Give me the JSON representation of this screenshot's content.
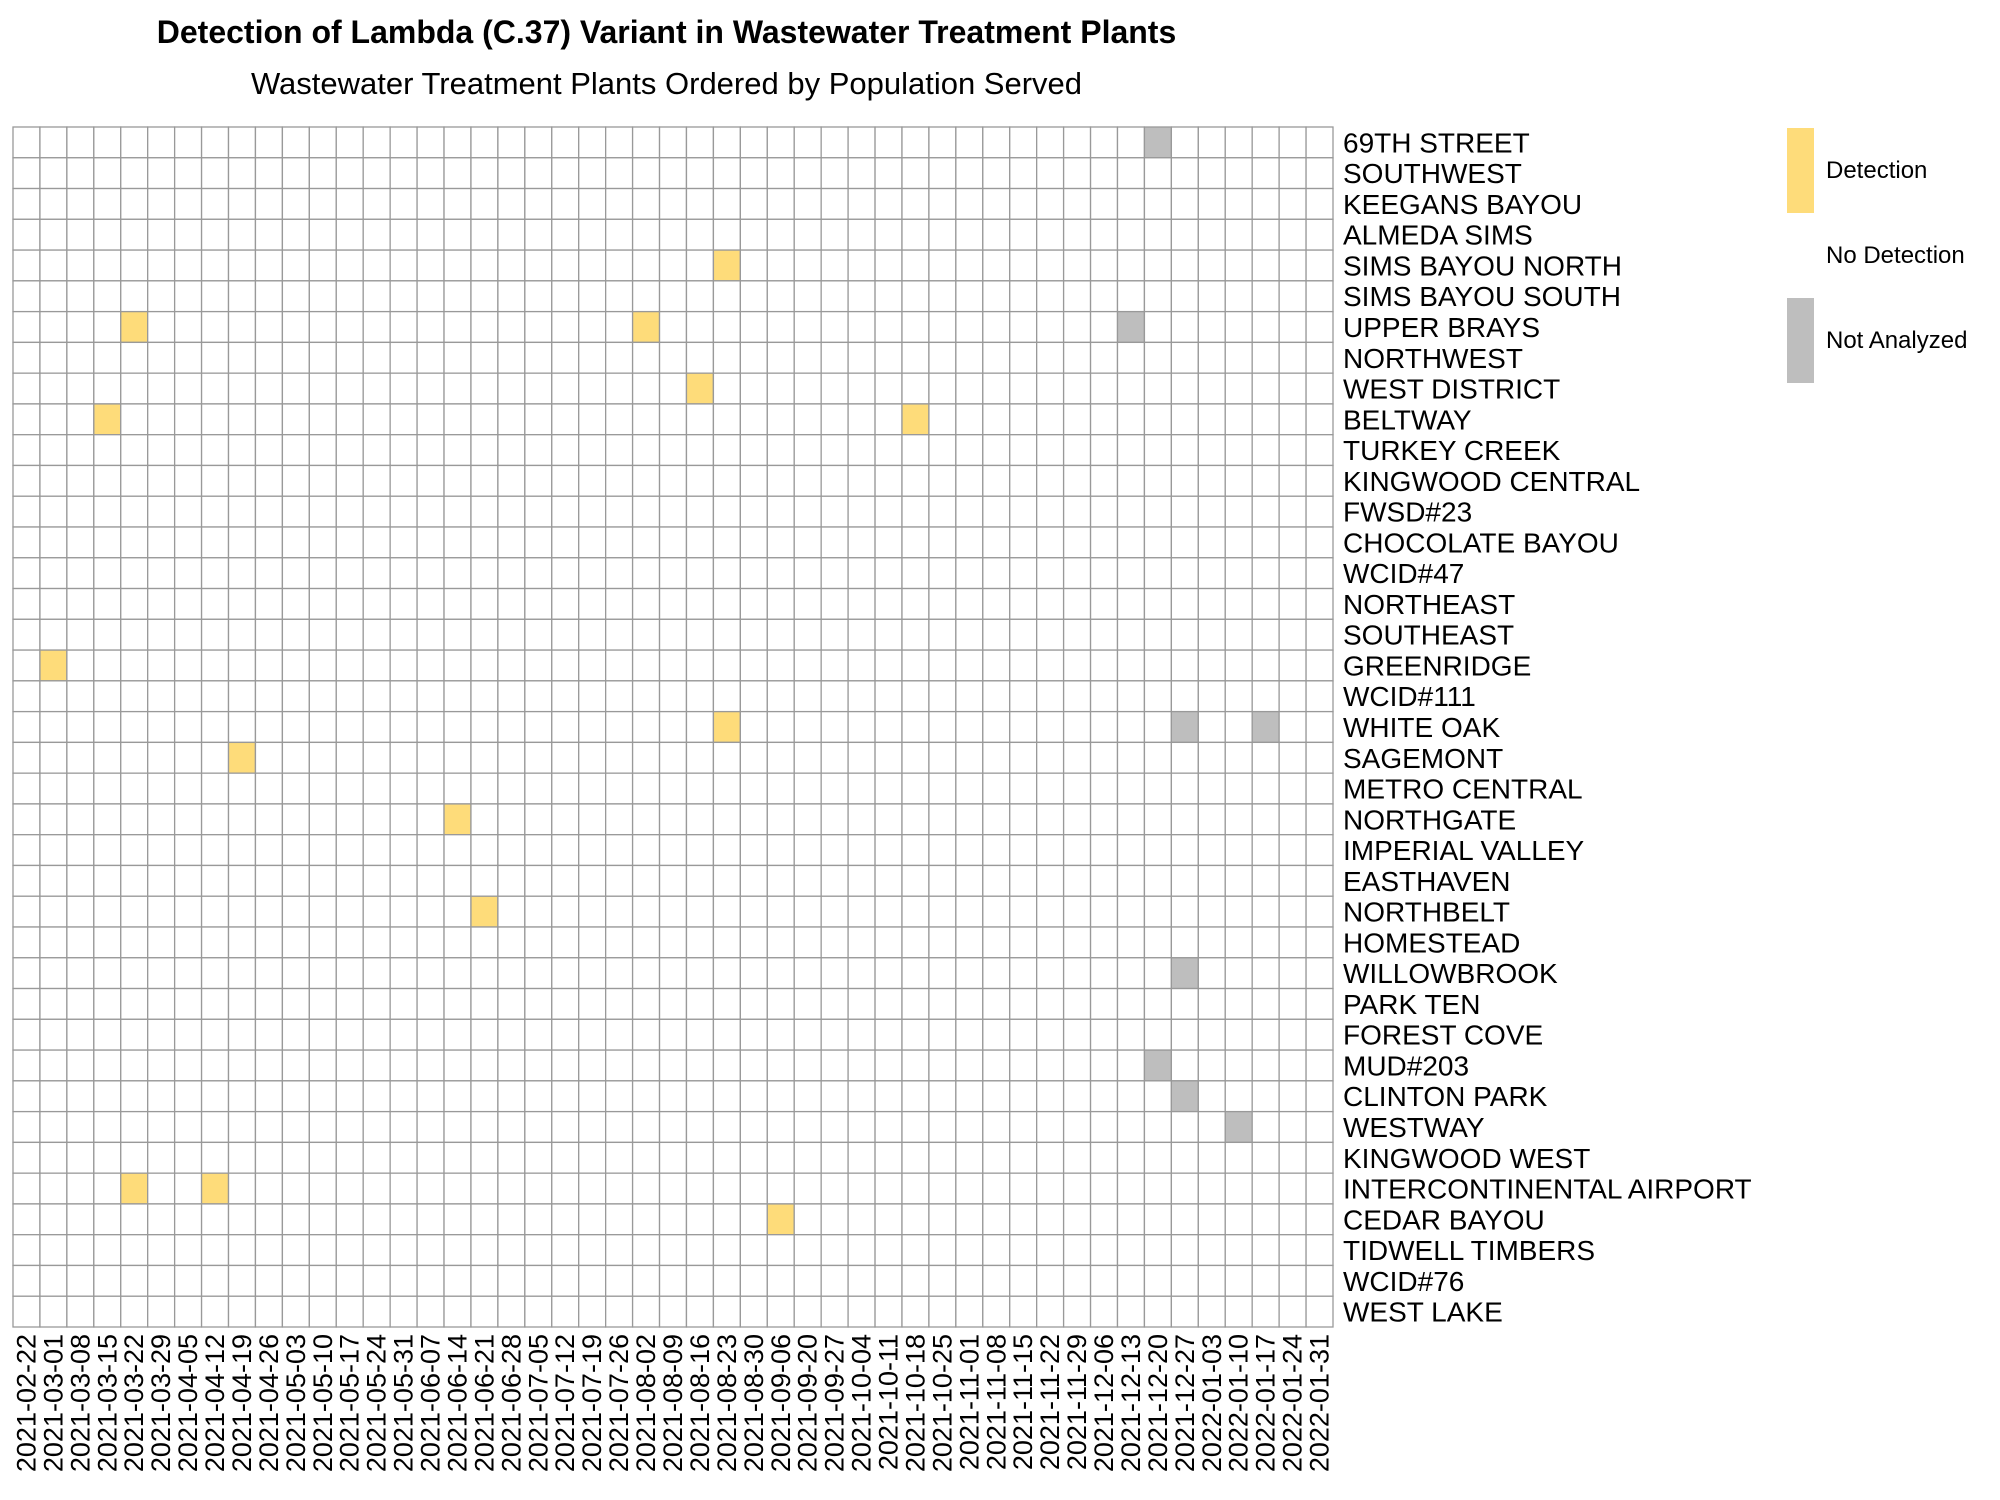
{
  "chart_data": {
    "type": "heatmap",
    "title": "Detection of Lambda (C.37) Variant in Wastewater Treatment Plants",
    "subtitle": "Wastewater Treatment Plants Ordered by Population Served",
    "x_labels": [
      "2021-02-22",
      "2021-03-01",
      "2021-03-08",
      "2021-03-15",
      "2021-03-22",
      "2021-03-29",
      "2021-04-05",
      "2021-04-12",
      "2021-04-19",
      "2021-04-26",
      "2021-05-03",
      "2021-05-10",
      "2021-05-17",
      "2021-05-24",
      "2021-05-31",
      "2021-06-07",
      "2021-06-14",
      "2021-06-21",
      "2021-06-28",
      "2021-07-05",
      "2021-07-12",
      "2021-07-19",
      "2021-07-26",
      "2021-08-02",
      "2021-08-09",
      "2021-08-16",
      "2021-08-23",
      "2021-08-30",
      "2021-09-06",
      "2021-09-20",
      "2021-09-27",
      "2021-10-04",
      "2021-10-11",
      "2021-10-18",
      "2021-10-25",
      "2021-11-01",
      "2021-11-08",
      "2021-11-15",
      "2021-11-22",
      "2021-11-29",
      "2021-12-06",
      "2021-12-13",
      "2021-12-20",
      "2021-12-27",
      "2022-01-03",
      "2022-01-10",
      "2022-01-17",
      "2022-01-24",
      "2022-01-31"
    ],
    "y_labels": [
      "69TH STREET",
      "SOUTHWEST",
      "KEEGANS BAYOU",
      "ALMEDA SIMS",
      "SIMS BAYOU NORTH",
      "SIMS BAYOU SOUTH",
      "UPPER BRAYS",
      "NORTHWEST",
      "WEST DISTRICT",
      "BELTWAY",
      "TURKEY CREEK",
      "KINGWOOD CENTRAL",
      "FWSD#23",
      "CHOCOLATE BAYOU",
      "WCID#47",
      "NORTHEAST",
      "SOUTHEAST",
      "GREENRIDGE",
      "WCID#111",
      "WHITE OAK",
      "SAGEMONT",
      "METRO CENTRAL",
      "NORTHGATE",
      "IMPERIAL VALLEY",
      "EASTHAVEN",
      "NORTHBELT",
      "HOMESTEAD",
      "WILLOWBROOK",
      "PARK TEN",
      "FOREST COVE",
      "MUD#203",
      "CLINTON PARK",
      "WESTWAY",
      "KINGWOOD WEST",
      "INTERCONTINENTAL AIRPORT",
      "CEDAR BAYOU",
      "TIDWELL TIMBERS",
      "WCID#76",
      "WEST LAKE"
    ],
    "default_status": "No Detection",
    "cells": [
      {
        "plant": "69TH STREET",
        "date": "2021-12-20",
        "status": "Not Analyzed"
      },
      {
        "plant": "SIMS BAYOU NORTH",
        "date": "2021-08-23",
        "status": "Detection"
      },
      {
        "plant": "UPPER BRAYS",
        "date": "2021-03-22",
        "status": "Detection"
      },
      {
        "plant": "UPPER BRAYS",
        "date": "2021-08-02",
        "status": "Detection"
      },
      {
        "plant": "UPPER BRAYS",
        "date": "2021-12-13",
        "status": "Not Analyzed"
      },
      {
        "plant": "WEST DISTRICT",
        "date": "2021-08-16",
        "status": "Detection"
      },
      {
        "plant": "BELTWAY",
        "date": "2021-03-15",
        "status": "Detection"
      },
      {
        "plant": "BELTWAY",
        "date": "2021-10-18",
        "status": "Detection"
      },
      {
        "plant": "GREENRIDGE",
        "date": "2021-03-01",
        "status": "Detection"
      },
      {
        "plant": "WHITE OAK",
        "date": "2021-08-23",
        "status": "Detection"
      },
      {
        "plant": "WHITE OAK",
        "date": "2021-12-27",
        "status": "Not Analyzed"
      },
      {
        "plant": "WHITE OAK",
        "date": "2022-01-17",
        "status": "Not Analyzed"
      },
      {
        "plant": "SAGEMONT",
        "date": "2021-04-19",
        "status": "Detection"
      },
      {
        "plant": "NORTHGATE",
        "date": "2021-06-14",
        "status": "Detection"
      },
      {
        "plant": "NORTHBELT",
        "date": "2021-06-21",
        "status": "Detection"
      },
      {
        "plant": "WILLOWBROOK",
        "date": "2021-12-27",
        "status": "Not Analyzed"
      },
      {
        "plant": "MUD#203",
        "date": "2021-12-20",
        "status": "Not Analyzed"
      },
      {
        "plant": "CLINTON PARK",
        "date": "2021-12-27",
        "status": "Not Analyzed"
      },
      {
        "plant": "WESTWAY",
        "date": "2022-01-10",
        "status": "Not Analyzed"
      },
      {
        "plant": "INTERCONTINENTAL AIRPORT",
        "date": "2021-03-22",
        "status": "Detection"
      },
      {
        "plant": "INTERCONTINENTAL AIRPORT",
        "date": "2021-04-12",
        "status": "Detection"
      },
      {
        "plant": "CEDAR BAYOU",
        "date": "2021-09-06",
        "status": "Detection"
      }
    ],
    "legend": [
      {
        "label": "Detection",
        "color": "#FEDC7A"
      },
      {
        "label": "No Detection",
        "color": "#FFFFFF"
      },
      {
        "label": "Not Analyzed",
        "color": "#BEBEBE"
      }
    ],
    "legend_position": "right",
    "grid_color": "#999999"
  }
}
